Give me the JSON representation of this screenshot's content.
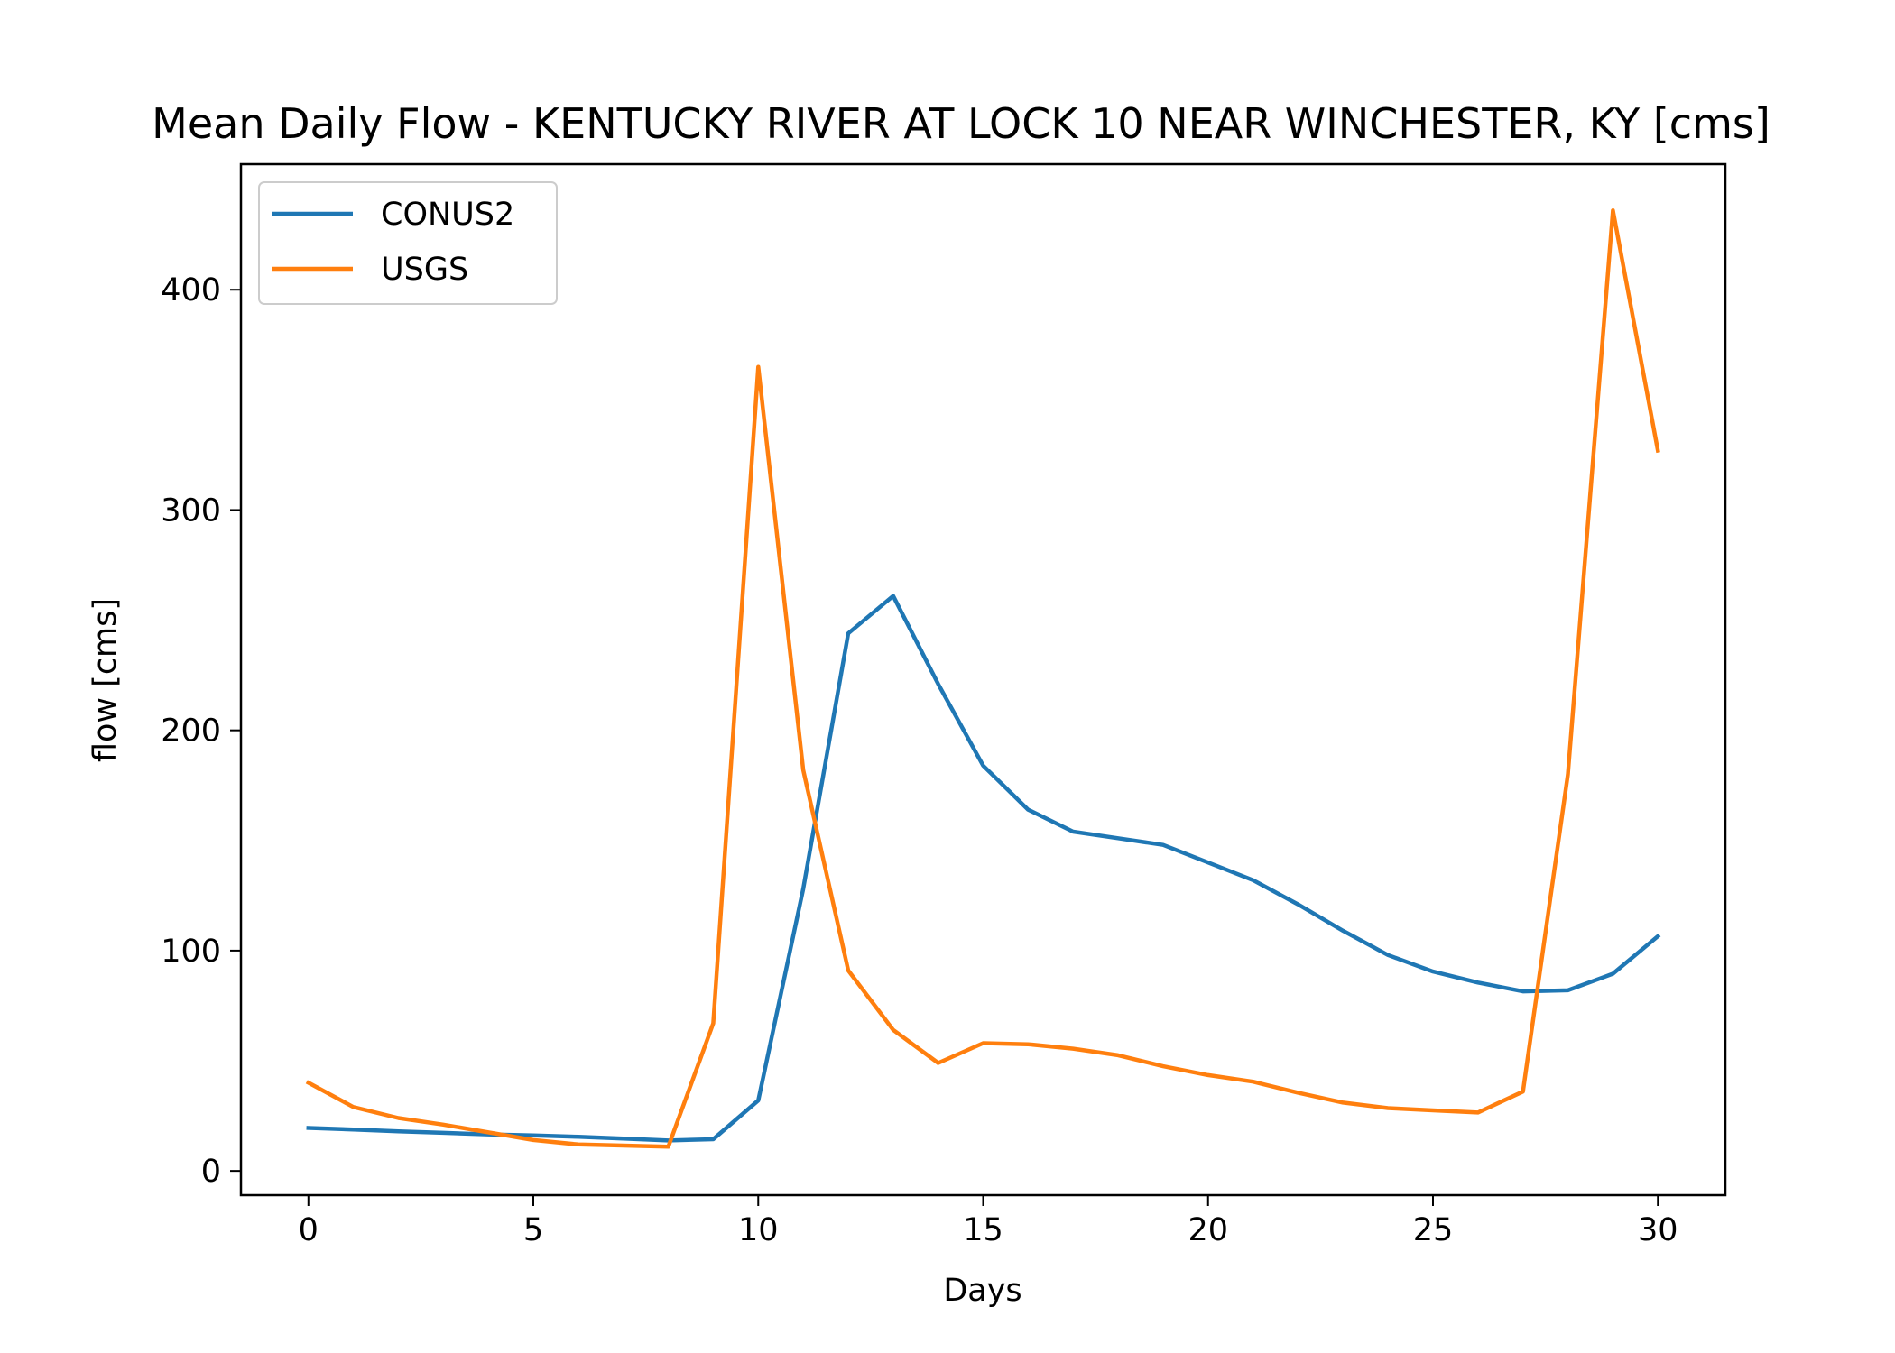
{
  "chart_data": {
    "type": "line",
    "title": "Mean Daily Flow - KENTUCKY RIVER AT LOCK 10 NEAR WINCHESTER, KY [cms]",
    "xlabel": "Days",
    "ylabel": "flow [cms]",
    "xlim": [
      -1.5,
      31.5
    ],
    "ylim": [
      -11,
      457
    ],
    "xticks": [
      0,
      5,
      10,
      15,
      20,
      25,
      30
    ],
    "yticks": [
      0,
      100,
      200,
      300,
      400
    ],
    "grid": false,
    "legend_position": "upper-left",
    "x": [
      0,
      1,
      2,
      3,
      4,
      5,
      6,
      7,
      8,
      9,
      10,
      11,
      12,
      13,
      14,
      15,
      16,
      17,
      18,
      19,
      20,
      21,
      22,
      23,
      24,
      25,
      26,
      27,
      28,
      29,
      30
    ],
    "series": [
      {
        "name": "CONUS2",
        "color": "#1f77b4",
        "values": [
          19.5,
          18.8,
          18.0,
          17.3,
          16.6,
          16.1,
          15.5,
          14.7,
          13.8,
          14.4,
          32,
          128,
          244,
          261,
          221,
          184,
          164,
          154,
          151,
          148,
          140,
          132,
          121,
          109,
          98,
          90.5,
          85.5,
          81.5,
          82,
          89.5,
          106.5
        ]
      },
      {
        "name": "USGS",
        "color": "#ff7f0e",
        "values": [
          40,
          29,
          24,
          21,
          17.5,
          14,
          12,
          11.5,
          11,
          67,
          365,
          182,
          91,
          64,
          49,
          58,
          57.5,
          55.5,
          52.5,
          47.5,
          43.5,
          40.5,
          35.5,
          31,
          28.5,
          27.5,
          26.5,
          36,
          180,
          436,
          327
        ]
      }
    ]
  }
}
